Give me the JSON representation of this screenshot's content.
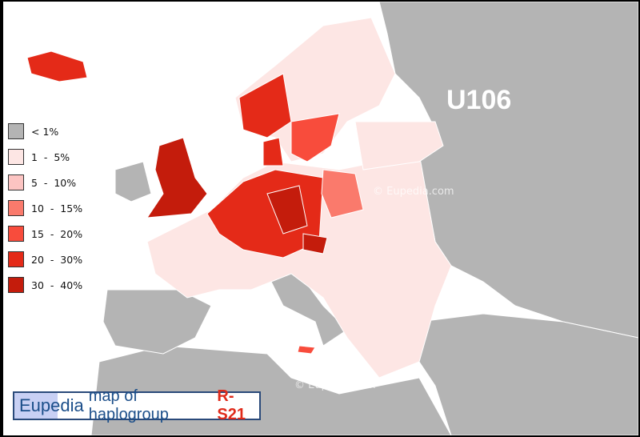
{
  "map": {
    "region_label": "U106",
    "watermarks": [
      "© Eupedia.com",
      "© Eupedia.com"
    ],
    "colors": {
      "sea": "#ffffff",
      "no_data": "#b4b4b4",
      "border": "#ffffff"
    }
  },
  "legend": {
    "items": [
      {
        "label": "< 1%",
        "color": "#b4b4b4"
      },
      {
        "label": "1  -  5%",
        "color": "#fde6e4"
      },
      {
        "label": "5  -  10%",
        "color": "#fcc4c2"
      },
      {
        "label": "10  -  15%",
        "color": "#fa7a6c"
      },
      {
        "label": "15  -  20%",
        "color": "#f84c3c"
      },
      {
        "label": "20  -  30%",
        "color": "#e42a18"
      },
      {
        "label": "30  -  40%",
        "color": "#c41c0c"
      }
    ]
  },
  "banner": {
    "brand": "Eupedia",
    "title": "map of haplogroup",
    "haplogroup": "R-S21"
  }
}
